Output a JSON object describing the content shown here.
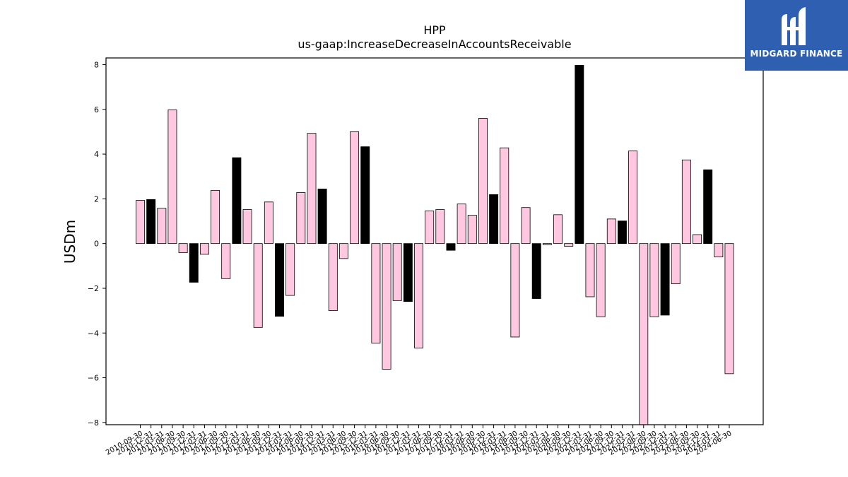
{
  "brand": {
    "name": "MIDGARD FINANCE",
    "background": "#2f5fb0",
    "text_color": "#ffffff"
  },
  "colors": {
    "pink": "#ffc8e0",
    "black": "#000000",
    "edge": "#000000"
  },
  "chart_data": {
    "type": "bar",
    "title": "HPP",
    "subtitle": "us-gaap:IncreaseDecreaseInAccountsReceivable",
    "xlabel": "",
    "ylabel": "USDm",
    "ylim": [
      -8.1,
      8.3
    ],
    "yticks": [
      -8,
      -6,
      -4,
      -2,
      0,
      2,
      4,
      6,
      8
    ],
    "ytick_labels": [
      "−8",
      "−6",
      "−4",
      "−2",
      "0",
      "2",
      "4",
      "6",
      "8"
    ],
    "grid": false,
    "categories": [
      "2010-09-30",
      "2010-12-31",
      "2011-03-31",
      "2011-06-30",
      "2011-09-30",
      "2011-12-31",
      "2012-03-31",
      "2012-06-30",
      "2012-09-30",
      "2012-12-31",
      "2013-03-31",
      "2013-06-30",
      "2013-09-30",
      "2013-12-31",
      "2014-03-31",
      "2014-06-30",
      "2014-09-30",
      "2014-12-31",
      "2015-03-31",
      "2015-06-30",
      "2015-09-30",
      "2015-12-31",
      "2016-03-31",
      "2016-06-30",
      "2016-09-30",
      "2016-12-31",
      "2017-03-31",
      "2017-06-30",
      "2017-09-30",
      "2017-12-31",
      "2018-03-31",
      "2018-06-30",
      "2018-09-30",
      "2018-12-31",
      "2019-03-31",
      "2019-06-30",
      "2019-09-30",
      "2019-12-31",
      "2020-03-31",
      "2020-06-30",
      "2020-09-30",
      "2020-12-31",
      "2021-03-31",
      "2021-06-30",
      "2021-09-30",
      "2021-12-31",
      "2022-03-31",
      "2022-06-30",
      "2022-09-30",
      "2022-12-31",
      "2023-03-31",
      "2023-06-30",
      "2023-09-30",
      "2023-12-31",
      "2024-03-31",
      "2024-06-30"
    ],
    "values": [
      1.93,
      1.97,
      1.58,
      5.98,
      -0.41,
      -1.73,
      -0.48,
      2.38,
      -1.57,
      3.84,
      1.52,
      -3.75,
      1.86,
      -3.25,
      -2.32,
      2.28,
      4.93,
      2.44,
      -3.0,
      -0.67,
      5.0,
      4.33,
      -4.45,
      -5.62,
      -2.55,
      -2.59,
      -4.67,
      1.46,
      1.52,
      -0.3,
      1.77,
      1.27,
      5.6,
      2.19,
      4.28,
      -4.18,
      1.61,
      -2.46,
      -0.05,
      1.29,
      -0.12,
      7.97,
      -2.38,
      -3.27,
      1.1,
      1.01,
      4.14,
      -8.1,
      -3.27,
      -3.2,
      -1.8,
      3.74,
      0.4,
      3.3,
      -0.6,
      -5.82
    ],
    "bar_colors": [
      "pink",
      "black",
      "pink",
      "pink",
      "pink",
      "black",
      "pink",
      "pink",
      "pink",
      "black",
      "pink",
      "pink",
      "pink",
      "black",
      "pink",
      "pink",
      "pink",
      "black",
      "pink",
      "pink",
      "pink",
      "black",
      "pink",
      "pink",
      "pink",
      "black",
      "pink",
      "pink",
      "pink",
      "black",
      "pink",
      "pink",
      "pink",
      "black",
      "pink",
      "pink",
      "pink",
      "black",
      "pink",
      "pink",
      "pink",
      "black",
      "pink",
      "pink",
      "pink",
      "black",
      "pink",
      "pink",
      "pink",
      "black",
      "pink",
      "pink",
      "pink",
      "black",
      "pink",
      "pink"
    ]
  }
}
